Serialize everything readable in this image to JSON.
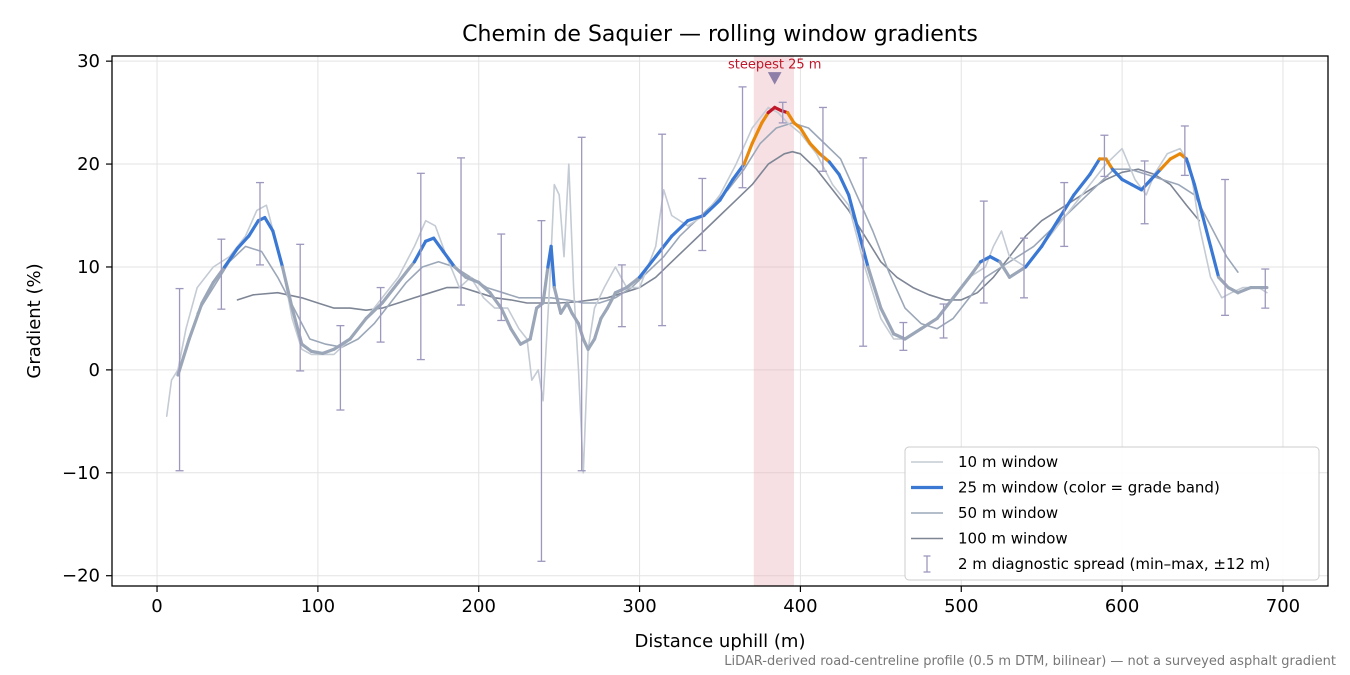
{
  "chart_data": {
    "type": "line",
    "title": "Chemin de Saquier — rolling window gradients",
    "xlabel": "Distance uphill (m)",
    "ylabel": "Gradient (%)",
    "xlim": [
      -28,
      728
    ],
    "ylim": [
      -21,
      30.5
    ],
    "xticks": [
      0,
      100,
      200,
      300,
      400,
      500,
      600,
      700
    ],
    "yticks": [
      -20,
      -10,
      0,
      10,
      20,
      30
    ],
    "ytick_labels": [
      "−20",
      "−10",
      "0",
      "10",
      "20",
      "30"
    ],
    "grid": true,
    "legend_position": "lower-right",
    "footnote": "LiDAR-derived road-centreline profile (0.5 m DTM, bilinear) — not a surveyed asphalt gradient",
    "highlight": {
      "x_range": [
        371,
        396
      ],
      "label": "steepest 25 m",
      "marker_x": 384,
      "marker_y": 28.3
    },
    "colors": {
      "w10": "#c4cbd4",
      "w25_blue": "#3a78d4",
      "w25_orange": "#e8890c",
      "w25_red": "#c0182a",
      "w50": "#9ba7b8",
      "w100": "#7e8696",
      "errorbar": "#9d98bd",
      "highlight": "#e8a6b0",
      "annot": "#c0182a"
    },
    "legend": [
      {
        "label": "10 m window"
      },
      {
        "label": "25 m window (color = grade band)"
      },
      {
        "label": "50 m window"
      },
      {
        "label": "100 m window"
      },
      {
        "label": "2 m diagnostic spread (min–max, ±12 m)"
      }
    ],
    "series": [
      {
        "name": "10 m window",
        "x": [
          6,
          9,
          13,
          18,
          25,
          35,
          45,
          55,
          62,
          68,
          73,
          78,
          84,
          90,
          96,
          103,
          110,
          120,
          130,
          140,
          150,
          160,
          167,
          173,
          180,
          188,
          195,
          203,
          210,
          218,
          225,
          230,
          233,
          237,
          240,
          244,
          247,
          250,
          253,
          256,
          259,
          262,
          265,
          268,
          272,
          278,
          285,
          292,
          300,
          310,
          315,
          320,
          330,
          340,
          350,
          360,
          370,
          380,
          386,
          392,
          400,
          410,
          420,
          430,
          440,
          450,
          458,
          465,
          475,
          485,
          495,
          505,
          515,
          520,
          525,
          530,
          540,
          550,
          560,
          570,
          580,
          590,
          600,
          608,
          615,
          620,
          628,
          636,
          642,
          648,
          655,
          662,
          668,
          675,
          685,
          690
        ],
        "y": [
          -4.5,
          -1,
          0,
          4,
          8,
          10,
          11,
          13,
          15.5,
          16,
          13,
          10,
          5,
          2,
          1.5,
          1.5,
          1.5,
          3,
          5,
          7,
          9,
          12,
          14.5,
          14,
          11,
          8,
          9,
          7,
          6,
          6,
          4,
          3,
          -1,
          0,
          -3,
          8,
          18,
          17,
          11,
          20,
          8,
          0,
          -10,
          2,
          6,
          8,
          10,
          8,
          8,
          12,
          17.5,
          15,
          14,
          15,
          17,
          20,
          23.5,
          25.5,
          25,
          24,
          23,
          21,
          18,
          16,
          10,
          5,
          3,
          3,
          4,
          5,
          7,
          9,
          10,
          12,
          13.5,
          11,
          10,
          12,
          14,
          16,
          18,
          20,
          21.5,
          18.5,
          17,
          19,
          21,
          21.5,
          20,
          14,
          9,
          7,
          7.5,
          8,
          8,
          7.5
        ]
      },
      {
        "name": "25 m window",
        "x": [
          13,
          20,
          28,
          35,
          42,
          50,
          57,
          63,
          67,
          72,
          78,
          84,
          90,
          96,
          103,
          110,
          120,
          130,
          140,
          150,
          160,
          167,
          172,
          178,
          185,
          192,
          200,
          207,
          214,
          220,
          226,
          232,
          236,
          240,
          243,
          245,
          247,
          251,
          255,
          258,
          262,
          265,
          268,
          272,
          276,
          280,
          285,
          292,
          300,
          310,
          320,
          330,
          340,
          350,
          358,
          365,
          370,
          376,
          380,
          384,
          388,
          392,
          396,
          400,
          406,
          412,
          418,
          424,
          430,
          436,
          442,
          450,
          458,
          465,
          475,
          485,
          495,
          505,
          512,
          518,
          524,
          530,
          540,
          550,
          560,
          570,
          580,
          586,
          590,
          594,
          600,
          606,
          612,
          618,
          624,
          630,
          636,
          640,
          645,
          650,
          655,
          660,
          666,
          672,
          680,
          690
        ],
        "y": [
          -0.5,
          3,
          6.5,
          8.5,
          10,
          11.8,
          13,
          14.5,
          14.8,
          13.5,
          10,
          6,
          2.5,
          1.8,
          1.6,
          2,
          3,
          5,
          6.5,
          8.5,
          10.5,
          12.5,
          12.8,
          11.5,
          10,
          9,
          8.5,
          7.5,
          6,
          4,
          2.5,
          3,
          6,
          6.5,
          10,
          12,
          8,
          5.5,
          6.5,
          5.5,
          4.5,
          3,
          2,
          3,
          5,
          6,
          7.5,
          8,
          9,
          11,
          13,
          14.5,
          15,
          16.5,
          18.5,
          20,
          22,
          24,
          25,
          25.5,
          25.2,
          25,
          24,
          23.5,
          22,
          21,
          20.2,
          19,
          17,
          13.5,
          10,
          6,
          3.5,
          3,
          4,
          5,
          7,
          9,
          10.5,
          11,
          10.5,
          9,
          10,
          12,
          14.5,
          17,
          19,
          20.5,
          20.5,
          19.5,
          18.5,
          18,
          17.5,
          18.5,
          19.5,
          20.5,
          21,
          20.5,
          18,
          15,
          12,
          9,
          8,
          7.5,
          8,
          8
        ]
      },
      {
        "name": "50 m window",
        "x": [
          25,
          35,
          45,
          55,
          65,
          75,
          85,
          95,
          105,
          115,
          125,
          135,
          145,
          155,
          165,
          175,
          185,
          195,
          205,
          215,
          225,
          235,
          245,
          255,
          265,
          275,
          285,
          295,
          305,
          315,
          325,
          335,
          345,
          355,
          365,
          375,
          385,
          395,
          405,
          415,
          425,
          435,
          445,
          455,
          465,
          475,
          485,
          495,
          505,
          515,
          525,
          535,
          545,
          555,
          565,
          575,
          585,
          595,
          605,
          615,
          625,
          635,
          645,
          655,
          665,
          672
        ],
        "y": [
          5.5,
          8,
          10.5,
          12,
          11.5,
          9,
          6,
          3,
          2.5,
          2.2,
          3,
          4.5,
          6.5,
          8.5,
          10,
          10.5,
          10,
          9,
          8,
          7.5,
          7,
          7,
          7,
          6.8,
          6.5,
          6.5,
          7,
          8,
          9.5,
          11,
          13,
          14.5,
          16,
          17.5,
          19.5,
          22,
          23.5,
          24,
          23.5,
          22,
          20.5,
          17,
          13.5,
          9.5,
          6,
          4.5,
          4,
          5,
          7,
          9,
          10,
          11,
          12,
          13.5,
          15,
          16.5,
          18,
          19.5,
          19.5,
          19,
          18.5,
          18,
          17,
          14,
          11,
          9.5
        ]
      },
      {
        "name": "100 m window",
        "x": [
          50,
          60,
          75,
          90,
          100,
          110,
          120,
          130,
          140,
          150,
          160,
          170,
          180,
          190,
          200,
          210,
          220,
          230,
          240,
          250,
          260,
          270,
          280,
          290,
          300,
          310,
          320,
          330,
          340,
          350,
          360,
          370,
          380,
          390,
          395,
          400,
          410,
          420,
          430,
          440,
          450,
          460,
          470,
          480,
          490,
          500,
          510,
          520,
          530,
          540,
          550,
          560,
          570,
          580,
          590,
          600,
          610,
          620,
          630,
          640,
          648
        ],
        "y": [
          6.8,
          7.3,
          7.5,
          7,
          6.5,
          6,
          6,
          5.8,
          6,
          6.5,
          7,
          7.5,
          8,
          8,
          7.5,
          7,
          6.8,
          6.5,
          6.5,
          6.5,
          6.6,
          6.8,
          7,
          7.5,
          8,
          9,
          10.5,
          12,
          13.5,
          15,
          16.5,
          18,
          20,
          21,
          21.2,
          21,
          19.5,
          17.5,
          15.5,
          13,
          10.5,
          9,
          8,
          7.3,
          6.8,
          6.8,
          7.5,
          9,
          11,
          13,
          14.5,
          15.5,
          16.5,
          17.5,
          18.5,
          19.2,
          19.5,
          19,
          18,
          16,
          14.5
        ]
      }
    ],
    "spread": [
      {
        "x": 14,
        "low": -9.8,
        "high": 7.9
      },
      {
        "x": 40,
        "low": 5.9,
        "high": 12.7
      },
      {
        "x": 64,
        "low": 10.2,
        "high": 18.2
      },
      {
        "x": 89,
        "low": -0.1,
        "high": 12.2
      },
      {
        "x": 114,
        "low": -3.9,
        "high": 4.3
      },
      {
        "x": 139,
        "low": 2.7,
        "high": 8.0
      },
      {
        "x": 164,
        "low": 1.0,
        "high": 19.1
      },
      {
        "x": 189,
        "low": 6.3,
        "high": 20.6
      },
      {
        "x": 214,
        "low": 4.8,
        "high": 13.2
      },
      {
        "x": 239,
        "low": -18.6,
        "high": 14.5
      },
      {
        "x": 264,
        "low": -9.8,
        "high": 22.6
      },
      {
        "x": 289,
        "low": 4.2,
        "high": 10.2
      },
      {
        "x": 314,
        "low": 4.3,
        "high": 22.9
      },
      {
        "x": 339,
        "low": 11.6,
        "high": 18.6
      },
      {
        "x": 364,
        "low": 17.7,
        "high": 27.5
      },
      {
        "x": 389,
        "low": 24.0,
        "high": 26.0
      },
      {
        "x": 414,
        "low": 19.3,
        "high": 25.5
      },
      {
        "x": 439,
        "low": 2.3,
        "high": 20.6
      },
      {
        "x": 464,
        "low": 1.9,
        "high": 4.6
      },
      {
        "x": 489,
        "low": 3.1,
        "high": 6.4
      },
      {
        "x": 514,
        "low": 6.5,
        "high": 16.4
      },
      {
        "x": 539,
        "low": 7.0,
        "high": 12.8
      },
      {
        "x": 564,
        "low": 12.0,
        "high": 18.2
      },
      {
        "x": 589,
        "low": 18.8,
        "high": 22.8
      },
      {
        "x": 614,
        "low": 14.2,
        "high": 20.3
      },
      {
        "x": 639,
        "low": 18.9,
        "high": 23.7
      },
      {
        "x": 664,
        "low": 5.3,
        "high": 18.5
      },
      {
        "x": 689,
        "low": 6.0,
        "high": 9.8
      }
    ]
  }
}
